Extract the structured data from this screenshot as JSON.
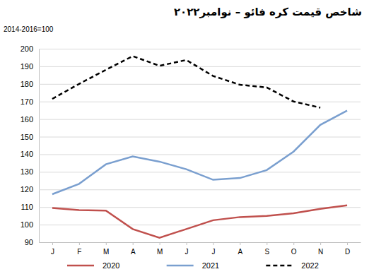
{
  "chart_data": {
    "type": "line",
    "title": "شاخص قیمت کره فائو – نوامبر۲۰۲۲",
    "ylabel": "2014-2016=100",
    "categories": [
      "J",
      "F",
      "M",
      "A",
      "M",
      "J",
      "J",
      "A",
      "S",
      "O",
      "N",
      "D"
    ],
    "series": [
      {
        "name": "2020",
        "color": "#c0504d",
        "line_style": "solid",
        "values": [
          109.5,
          108.3,
          108,
          97.5,
          92.5,
          97.5,
          102.5,
          104.3,
          105,
          106.5,
          109,
          111
        ]
      },
      {
        "name": "2021",
        "color": "#7a9fcf",
        "line_style": "solid",
        "values": [
          117.3,
          123.2,
          134.3,
          138.8,
          135.8,
          131.5,
          125.5,
          126.5,
          131,
          141.5,
          156.7,
          164.8
        ]
      },
      {
        "name": "2022",
        "color": "#000000",
        "line_style": "dashed",
        "values": [
          171.5,
          180,
          188,
          195.8,
          190.3,
          193.6,
          184.5,
          179.5,
          178,
          170,
          166.5,
          null
        ]
      }
    ],
    "ylim": [
      90,
      200
    ],
    "yticks": [
      90,
      100,
      110,
      120,
      130,
      140,
      150,
      160,
      170,
      180,
      190,
      200
    ],
    "grid": true,
    "legend": "bottom"
  }
}
